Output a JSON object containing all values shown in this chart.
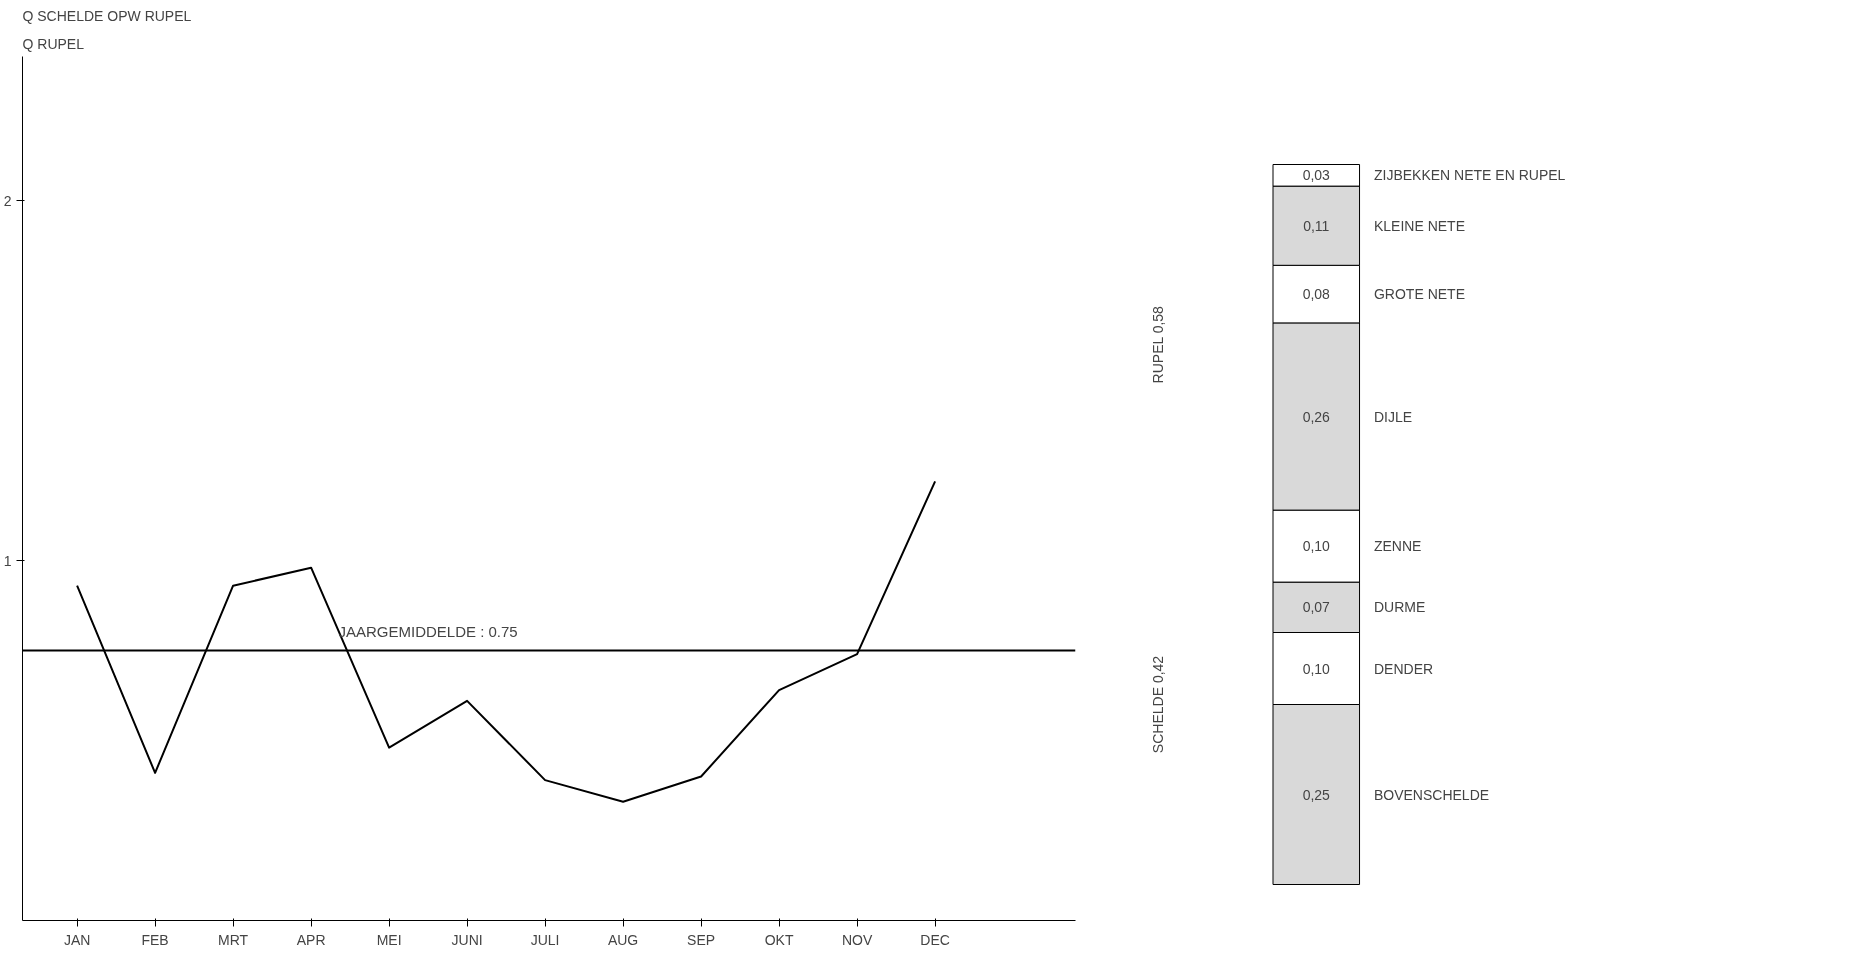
{
  "chart_data": [
    {
      "type": "line",
      "title": "Q SCHELDE OPW RUPEL",
      "subtitle": "Q RUPEL",
      "categories": [
        "JAN",
        "FEB",
        "MRT",
        "APR",
        "MEI",
        "JUNI",
        "JULI",
        "AUG",
        "SEP",
        "OKT",
        "NOV",
        "DEC"
      ],
      "series": [
        {
          "color": "#000000",
          "values": [
            0.93,
            0.41,
            0.93,
            0.98,
            0.48,
            0.61,
            0.39,
            0.33,
            0.4,
            0.64,
            0.74,
            1.22
          ]
        }
      ],
      "ylim": [
        0,
        2.4
      ],
      "yticks": [
        1,
        2
      ],
      "grid": false,
      "marker": "none",
      "line_style": "solid",
      "ref_lines": [
        {
          "axis": "y",
          "value": 0.75,
          "label": "JAARGEMIDDELDE : 0.75",
          "color": "#000000"
        }
      ]
    },
    {
      "type": "bar",
      "stacked": true,
      "categories": [
        null
      ],
      "tick_labels": false,
      "grid": false,
      "annotations": [
        "RUPEL 0,58",
        "SCHELDE 0,42"
      ],
      "series": [
        {
          "name": "BOVENSCHELDE",
          "color": "#d9d9d9",
          "values": [
            0.25
          ],
          "value_labels": [
            "0,25"
          ]
        },
        {
          "name": "DENDER",
          "color": "#ffffff",
          "values": [
            0.1
          ],
          "value_labels": [
            "0,10"
          ]
        },
        {
          "name": "DURME",
          "color": "#d9d9d9",
          "values": [
            0.07
          ],
          "value_labels": [
            "0,07"
          ]
        },
        {
          "name": "ZENNE",
          "color": "#ffffff",
          "values": [
            0.1
          ],
          "value_labels": [
            "0,10"
          ]
        },
        {
          "name": "DIJLE",
          "color": "#d9d9d9",
          "values": [
            0.26
          ],
          "value_labels": [
            "0,26"
          ]
        },
        {
          "name": "GROTE NETE",
          "color": "#ffffff",
          "values": [
            0.08
          ],
          "value_labels": [
            "0,08"
          ]
        },
        {
          "name": "KLEINE NETE",
          "color": "#d9d9d9",
          "values": [
            0.11
          ],
          "value_labels": [
            "0,11"
          ]
        },
        {
          "name": "ZIJBEKKEN NETE EN RUPEL",
          "color": "#ffffff",
          "values": [
            0.03
          ],
          "value_labels": [
            "0,03"
          ]
        }
      ]
    }
  ]
}
